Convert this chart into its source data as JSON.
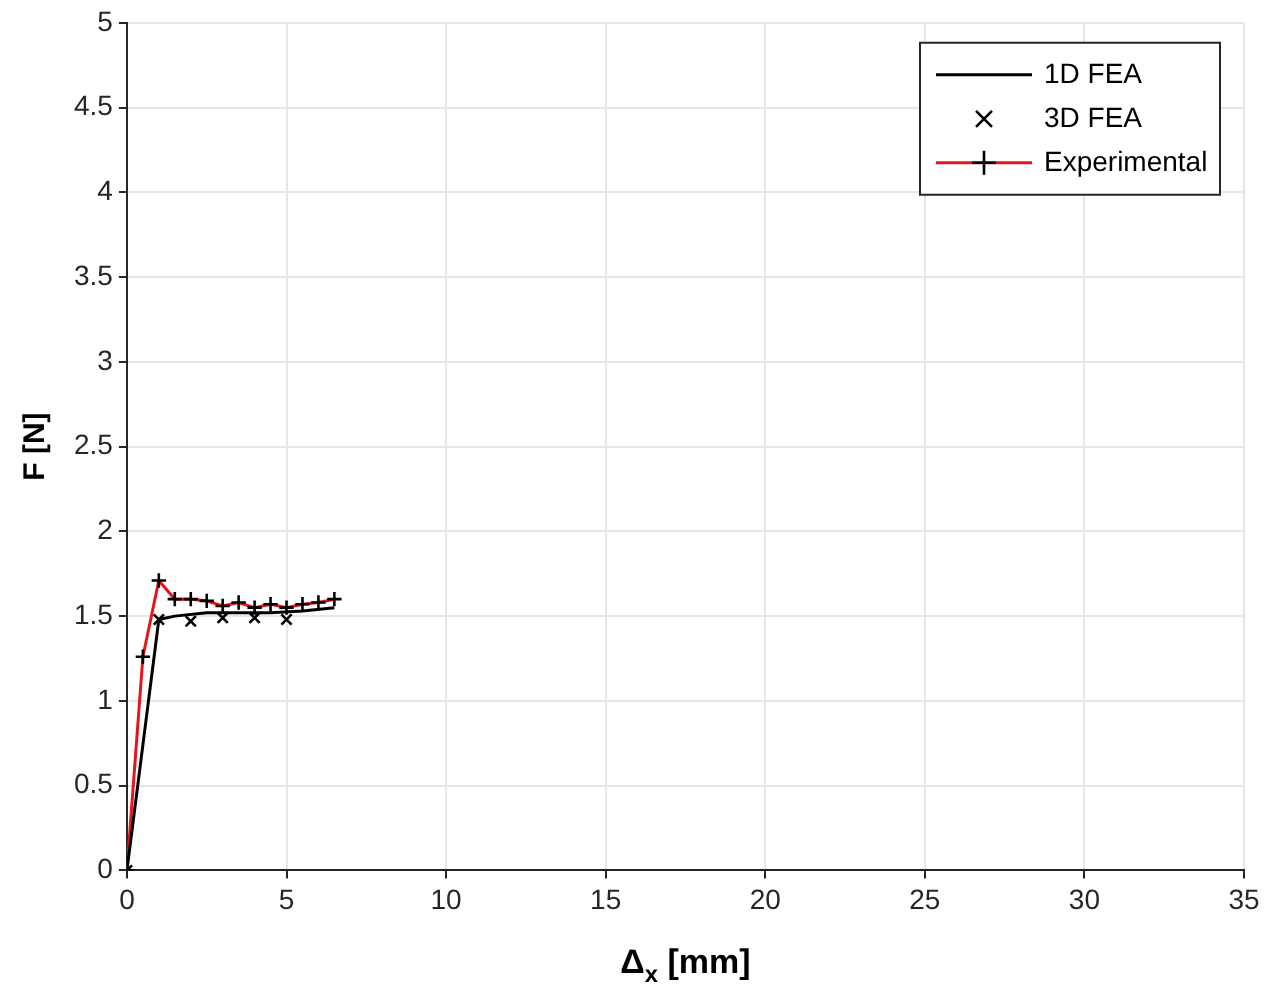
{
  "chart_data": {
    "type": "line",
    "xlabel": "Δ$_{x}$ [mm]",
    "ylabel": "F [N]",
    "xlim": [
      0,
      35
    ],
    "ylim": [
      0,
      5
    ],
    "xticks": [
      0,
      5,
      10,
      15,
      20,
      25,
      30,
      35
    ],
    "yticks": [
      0,
      0.5,
      1,
      1.5,
      2,
      2.5,
      3,
      3.5,
      4,
      4.5,
      5
    ],
    "grid": true,
    "legend": "top right",
    "series": [
      {
        "name": "1D FEA",
        "color": "#000000",
        "marker": "none",
        "x": [
          0,
          1,
          1.5,
          2.5,
          3.5,
          4.5,
          5.5,
          6.5
        ],
        "values": [
          0,
          1.48,
          1.5,
          1.52,
          1.52,
          1.52,
          1.53,
          1.55
        ]
      },
      {
        "name": "3D FEA",
        "type": "scatter",
        "color": "#000000",
        "marker": "cross",
        "x": [
          0,
          1,
          2,
          3,
          4,
          5
        ],
        "values": [
          0,
          1.48,
          1.47,
          1.49,
          1.49,
          1.48
        ]
      },
      {
        "name": "Experimental",
        "color": "#e8141b",
        "marker": "plus",
        "x": [
          0,
          0.5,
          1,
          1.5,
          2,
          2.5,
          3,
          3.5,
          4,
          4.5,
          5,
          5.5,
          6,
          6.5
        ],
        "values": [
          0,
          1.26,
          1.71,
          1.6,
          1.6,
          1.59,
          1.56,
          1.58,
          1.55,
          1.57,
          1.55,
          1.57,
          1.58,
          1.6
        ]
      }
    ]
  }
}
